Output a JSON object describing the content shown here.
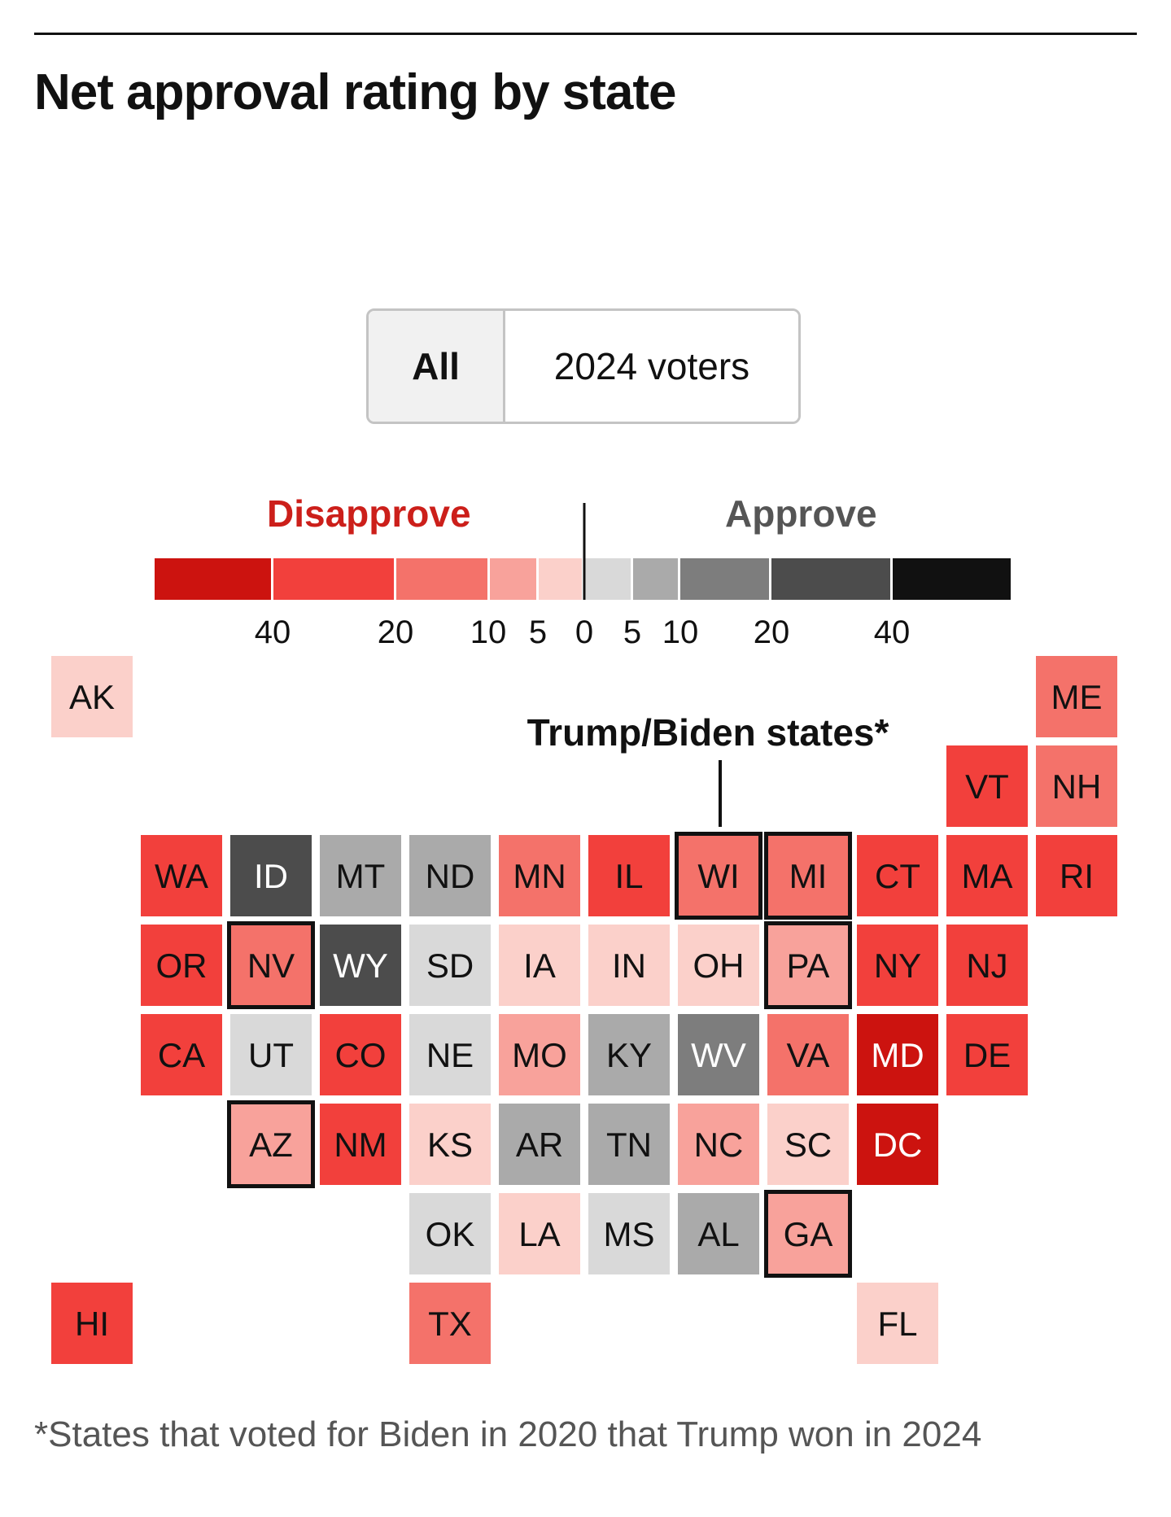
{
  "title": "Net approval rating by state",
  "toggle": {
    "all_label": "All",
    "voters_label": "2024 voters",
    "selected": "All"
  },
  "footnote": "*States that voted for Biden in 2020 that Trump won in 2024",
  "chart_data": {
    "type": "heatmap",
    "title": "Net approval rating by state",
    "legend": {
      "disapprove_label": "Disapprove",
      "approve_label": "Approve",
      "tick_labels": [
        "40",
        "20",
        "10",
        "5",
        "0",
        "5",
        "10",
        "20",
        "40"
      ],
      "bins": [
        {
          "from": -60,
          "to": -40,
          "color": "#cc130f"
        },
        {
          "from": -40,
          "to": -20,
          "color": "#f2403c"
        },
        {
          "from": -20,
          "to": -10,
          "color": "#f4726a"
        },
        {
          "from": -10,
          "to": -5,
          "color": "#f8a29b"
        },
        {
          "from": -5,
          "to": 0,
          "color": "#fbd0ca"
        },
        {
          "from": 0,
          "to": 5,
          "color": "#d9d9d9"
        },
        {
          "from": 5,
          "to": 10,
          "color": "#aaaaaa"
        },
        {
          "from": 10,
          "to": 20,
          "color": "#7d7d7d"
        },
        {
          "from": 20,
          "to": 40,
          "color": "#4c4c4c"
        },
        {
          "from": 40,
          "to": 60,
          "color": "#111111"
        }
      ]
    },
    "annotation": "Trump/Biden states*",
    "states": [
      {
        "abbr": "AK",
        "col": 0,
        "row": 0,
        "bin": -5,
        "swing": false
      },
      {
        "abbr": "ME",
        "col": 11,
        "row": 0,
        "bin": -20,
        "swing": false
      },
      {
        "abbr": "VT",
        "col": 10,
        "row": 1,
        "bin": -40,
        "swing": false
      },
      {
        "abbr": "NH",
        "col": 11,
        "row": 1,
        "bin": -20,
        "swing": false
      },
      {
        "abbr": "WA",
        "col": 1,
        "row": 2,
        "bin": -40,
        "swing": false
      },
      {
        "abbr": "ID",
        "col": 2,
        "row": 2,
        "bin": 20,
        "swing": false
      },
      {
        "abbr": "MT",
        "col": 3,
        "row": 2,
        "bin": 5,
        "swing": false
      },
      {
        "abbr": "ND",
        "col": 4,
        "row": 2,
        "bin": 5,
        "swing": false
      },
      {
        "abbr": "MN",
        "col": 5,
        "row": 2,
        "bin": -20,
        "swing": false
      },
      {
        "abbr": "IL",
        "col": 6,
        "row": 2,
        "bin": -40,
        "swing": false
      },
      {
        "abbr": "WI",
        "col": 7,
        "row": 2,
        "bin": -20,
        "swing": true
      },
      {
        "abbr": "MI",
        "col": 8,
        "row": 2,
        "bin": -20,
        "swing": true
      },
      {
        "abbr": "CT",
        "col": 9,
        "row": 2,
        "bin": -40,
        "swing": false
      },
      {
        "abbr": "MA",
        "col": 10,
        "row": 2,
        "bin": -40,
        "swing": false
      },
      {
        "abbr": "RI",
        "col": 11,
        "row": 2,
        "bin": -40,
        "swing": false
      },
      {
        "abbr": "OR",
        "col": 1,
        "row": 3,
        "bin": -40,
        "swing": false
      },
      {
        "abbr": "NV",
        "col": 2,
        "row": 3,
        "bin": -20,
        "swing": true
      },
      {
        "abbr": "WY",
        "col": 3,
        "row": 3,
        "bin": 20,
        "swing": false
      },
      {
        "abbr": "SD",
        "col": 4,
        "row": 3,
        "bin": 0,
        "swing": false
      },
      {
        "abbr": "IA",
        "col": 5,
        "row": 3,
        "bin": -5,
        "swing": false
      },
      {
        "abbr": "IN",
        "col": 6,
        "row": 3,
        "bin": -5,
        "swing": false
      },
      {
        "abbr": "OH",
        "col": 7,
        "row": 3,
        "bin": -5,
        "swing": false
      },
      {
        "abbr": "PA",
        "col": 8,
        "row": 3,
        "bin": -10,
        "swing": true
      },
      {
        "abbr": "NY",
        "col": 9,
        "row": 3,
        "bin": -40,
        "swing": false
      },
      {
        "abbr": "NJ",
        "col": 10,
        "row": 3,
        "bin": -40,
        "swing": false
      },
      {
        "abbr": "CA",
        "col": 1,
        "row": 4,
        "bin": -40,
        "swing": false
      },
      {
        "abbr": "UT",
        "col": 2,
        "row": 4,
        "bin": 0,
        "swing": false
      },
      {
        "abbr": "CO",
        "col": 3,
        "row": 4,
        "bin": -40,
        "swing": false
      },
      {
        "abbr": "NE",
        "col": 4,
        "row": 4,
        "bin": 0,
        "swing": false
      },
      {
        "abbr": "MO",
        "col": 5,
        "row": 4,
        "bin": -10,
        "swing": false
      },
      {
        "abbr": "KY",
        "col": 6,
        "row": 4,
        "bin": 5,
        "swing": false
      },
      {
        "abbr": "WV",
        "col": 7,
        "row": 4,
        "bin": 10,
        "swing": false
      },
      {
        "abbr": "VA",
        "col": 8,
        "row": 4,
        "bin": -20,
        "swing": false
      },
      {
        "abbr": "MD",
        "col": 9,
        "row": 4,
        "bin": -60,
        "swing": false
      },
      {
        "abbr": "DE",
        "col": 10,
        "row": 4,
        "bin": -40,
        "swing": false
      },
      {
        "abbr": "AZ",
        "col": 2,
        "row": 5,
        "bin": -10,
        "swing": true
      },
      {
        "abbr": "NM",
        "col": 3,
        "row": 5,
        "bin": -40,
        "swing": false
      },
      {
        "abbr": "KS",
        "col": 4,
        "row": 5,
        "bin": -5,
        "swing": false
      },
      {
        "abbr": "AR",
        "col": 5,
        "row": 5,
        "bin": 5,
        "swing": false
      },
      {
        "abbr": "TN",
        "col": 6,
        "row": 5,
        "bin": 5,
        "swing": false
      },
      {
        "abbr": "NC",
        "col": 7,
        "row": 5,
        "bin": -10,
        "swing": false
      },
      {
        "abbr": "SC",
        "col": 8,
        "row": 5,
        "bin": -5,
        "swing": false
      },
      {
        "abbr": "DC",
        "col": 9,
        "row": 5,
        "bin": -60,
        "swing": false
      },
      {
        "abbr": "OK",
        "col": 4,
        "row": 6,
        "bin": 0,
        "swing": false
      },
      {
        "abbr": "LA",
        "col": 5,
        "row": 6,
        "bin": -5,
        "swing": false
      },
      {
        "abbr": "MS",
        "col": 6,
        "row": 6,
        "bin": 0,
        "swing": false
      },
      {
        "abbr": "AL",
        "col": 7,
        "row": 6,
        "bin": 5,
        "swing": false
      },
      {
        "abbr": "GA",
        "col": 8,
        "row": 6,
        "bin": -10,
        "swing": true
      },
      {
        "abbr": "HI",
        "col": 0,
        "row": 7,
        "bin": -40,
        "swing": false
      },
      {
        "abbr": "TX",
        "col": 4,
        "row": 7,
        "bin": -20,
        "swing": false
      },
      {
        "abbr": "FL",
        "col": 9,
        "row": 7,
        "bin": -5,
        "swing": false
      }
    ]
  }
}
